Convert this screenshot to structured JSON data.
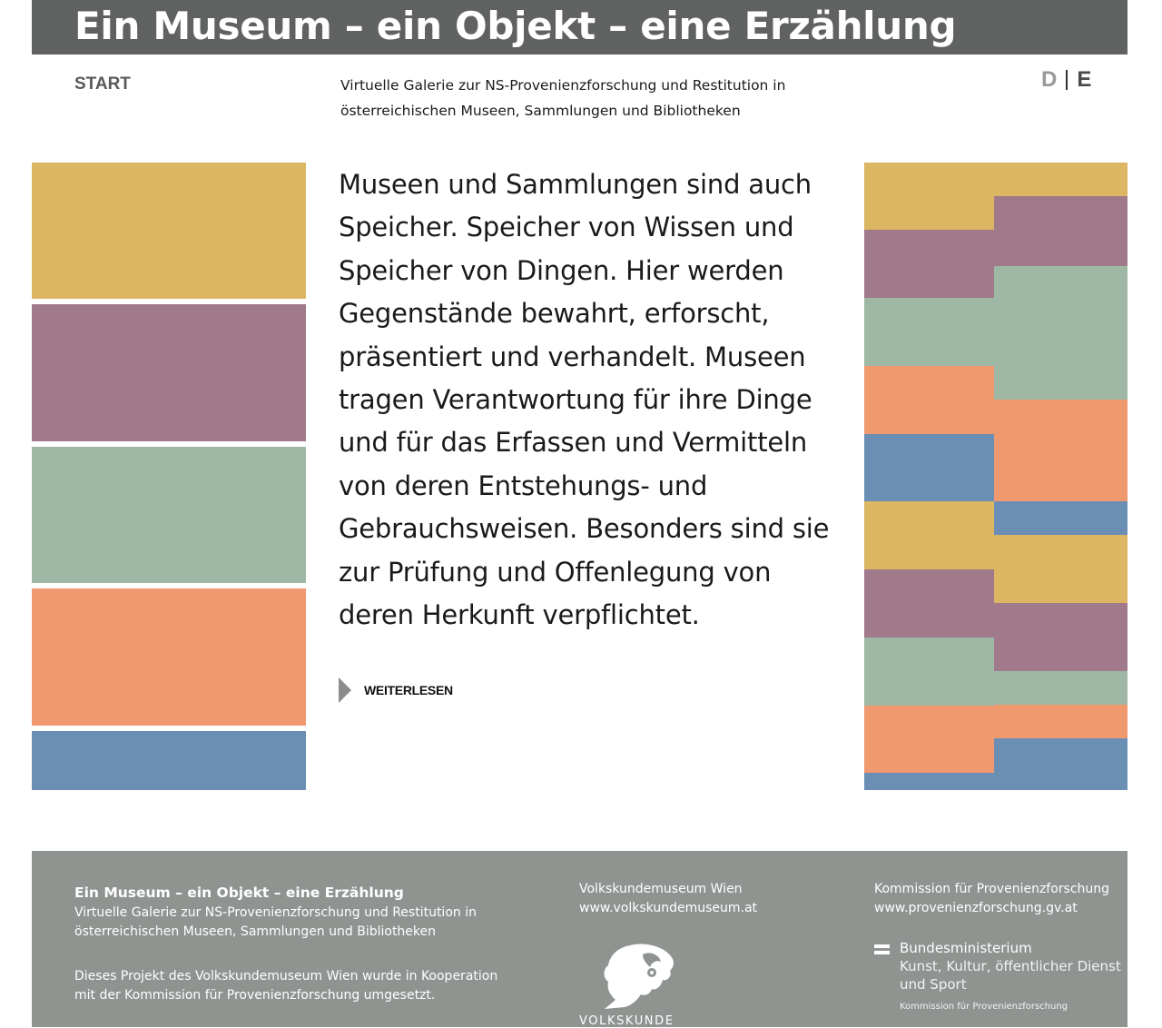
{
  "header": {
    "title": "Ein Museum – ein Objekt – eine Erzählung"
  },
  "nav": {
    "start_label": "START",
    "subtitle": "Virtuelle Galerie zur NS-Provenienzforschung und Restitution in österreichischen Museen, Sammlungen und Bibliotheken",
    "lang_de": "D",
    "lang_en": "E"
  },
  "colors": {
    "header_bg": "#5f6260",
    "footer_bg": "#8f9491",
    "ochre": "#dcb662",
    "mauve": "#a07a8a",
    "sage": "#9fb7a5",
    "salmon": "#f0996e",
    "steel_blue": "#6b8fb4"
  },
  "main": {
    "intro": "Museen und Sammlungen sind auch Speicher. Speicher von Wissen und Speicher von Dingen. Hier werden Gegenstände bewahrt, erforscht, präsentiert und verhandelt. Museen tragen Verantwortung für ihre Dinge und für das Erfassen und Vermitteln von deren Entstehungs- und Gebrauchsweisen. Besonders sind sie zur Prüfung und Offenlegung von deren Herkunft verpflichtet.",
    "read_more_label": "WEITERLESEN"
  },
  "footer": {
    "project_title": "Ein Museum – ein Objekt – eine Erzählung",
    "project_desc": "Virtuelle Galerie zur NS-Provenienzforschung und Restitution in österreichischen Museen, Sammlungen und Bibliotheken",
    "project_note": "Dieses Projekt des Volkskundemuseum Wien wurde in Kooperation mit der Kommission für Provenienzforschung umgesetzt.",
    "museum_name": "Volkskundemuseum Wien",
    "museum_url": "www.volkskundemuseum.at",
    "museum_logo_word": "VOLKSKUNDE",
    "commission_name": "Kommission für Provenienzforschung",
    "commission_url": "www.provenienzforschung.gv.at",
    "ministry_name": "Bundesministerium",
    "ministry_dept": "Kunst, Kultur, öffentlicher Dienst und Sport",
    "ministry_sub": "Kommission für Provenienzforschung"
  }
}
